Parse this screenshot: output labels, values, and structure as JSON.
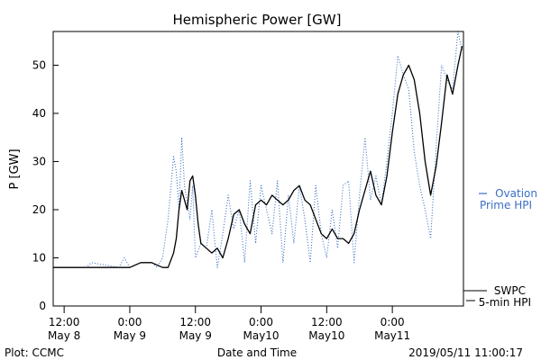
{
  "chart_data": {
    "type": "line",
    "title": "Hemispheric Power [GW]",
    "ylabel": "P [GW]",
    "xlabel": "Date and Time",
    "xlim": [
      "2019-05-08 10:00",
      "2019-05-11 13:00"
    ],
    "ylim": [
      0,
      57
    ],
    "grid": false,
    "yticks": [
      0,
      10,
      20,
      30,
      40,
      50
    ],
    "xticks": [
      {
        "time": "2019-05-08 12:00",
        "line1": "12:00",
        "line2": "May 8"
      },
      {
        "time": "2019-05-09 00:00",
        "line1": "0:00",
        "line2": "May 9"
      },
      {
        "time": "2019-05-09 12:00",
        "line1": "12:00",
        "line2": "May 9"
      },
      {
        "time": "2019-05-10 00:00",
        "line1": "0:00",
        "line2": "May10"
      },
      {
        "time": "2019-05-10 12:00",
        "line1": "12:00",
        "line2": "May10"
      },
      {
        "time": "2019-05-11 00:00",
        "line1": "0:00",
        "line2": "May11"
      }
    ],
    "series": [
      {
        "name": "SWPC 5-min HPI",
        "label_line1": "SWPC",
        "label_line2": "5-min HPI",
        "color": "#000000",
        "style": "solid",
        "x": [
          "2019-05-08 10:00",
          "2019-05-08 14:00",
          "2019-05-08 18:00",
          "2019-05-08 22:00",
          "2019-05-09 00:00",
          "2019-05-09 02:00",
          "2019-05-09 04:00",
          "2019-05-09 06:00",
          "2019-05-09 07:00",
          "2019-05-09 08:00",
          "2019-05-09 08:30",
          "2019-05-09 09:00",
          "2019-05-09 09:30",
          "2019-05-09 10:00",
          "2019-05-09 10:30",
          "2019-05-09 11:00",
          "2019-05-09 11:30",
          "2019-05-09 12:00",
          "2019-05-09 12:30",
          "2019-05-09 13:00",
          "2019-05-09 14:00",
          "2019-05-09 15:00",
          "2019-05-09 16:00",
          "2019-05-09 17:00",
          "2019-05-09 18:00",
          "2019-05-09 19:00",
          "2019-05-09 20:00",
          "2019-05-09 21:00",
          "2019-05-09 22:00",
          "2019-05-09 23:00",
          "2019-05-10 00:00",
          "2019-05-10 01:00",
          "2019-05-10 02:00",
          "2019-05-10 03:00",
          "2019-05-10 04:00",
          "2019-05-10 05:00",
          "2019-05-10 06:00",
          "2019-05-10 07:00",
          "2019-05-10 08:00",
          "2019-05-10 09:00",
          "2019-05-10 10:00",
          "2019-05-10 11:00",
          "2019-05-10 12:00",
          "2019-05-10 13:00",
          "2019-05-10 14:00",
          "2019-05-10 15:00",
          "2019-05-10 16:00",
          "2019-05-10 17:00",
          "2019-05-10 18:00",
          "2019-05-10 19:00",
          "2019-05-10 20:00",
          "2019-05-10 21:00",
          "2019-05-10 22:00",
          "2019-05-10 23:00",
          "2019-05-11 00:00",
          "2019-05-11 01:00",
          "2019-05-11 02:00",
          "2019-05-11 03:00",
          "2019-05-11 04:00",
          "2019-05-11 05:00",
          "2019-05-11 06:00",
          "2019-05-11 07:00",
          "2019-05-11 08:00",
          "2019-05-11 09:00",
          "2019-05-11 10:00",
          "2019-05-11 11:00",
          "2019-05-11 12:00",
          "2019-05-11 12:45"
        ],
        "y": [
          8,
          8,
          8,
          8,
          8,
          9,
          9,
          8,
          8,
          11,
          14,
          20,
          24,
          22,
          20,
          26,
          27,
          23,
          17,
          13,
          12,
          11,
          12,
          10,
          14,
          19,
          20,
          17,
          15,
          21,
          22,
          21,
          23,
          22,
          21,
          22,
          24,
          25,
          22,
          21,
          18,
          15,
          14,
          16,
          14,
          14,
          13,
          15,
          20,
          24,
          28,
          23,
          21,
          27,
          36,
          44,
          48,
          50,
          47,
          40,
          30,
          23,
          29,
          38,
          48,
          44,
          50,
          54
        ]
      },
      {
        "name": "Ovation Prime HPI",
        "label_line1": "Ovation",
        "label_line2": "Prime HPI",
        "color": "#3a6fc4",
        "style": "dotted",
        "x": [
          "2019-05-08 10:00",
          "2019-05-08 16:00",
          "2019-05-08 17:00",
          "2019-05-08 22:00",
          "2019-05-08 23:00",
          "2019-05-09 00:00",
          "2019-05-09 02:00",
          "2019-05-09 04:00",
          "2019-05-09 05:00",
          "2019-05-09 06:00",
          "2019-05-09 07:00",
          "2019-05-09 08:00",
          "2019-05-09 08:30",
          "2019-05-09 09:00",
          "2019-05-09 09:30",
          "2019-05-09 10:00",
          "2019-05-09 11:00",
          "2019-05-09 11:30",
          "2019-05-09 12:00",
          "2019-05-09 13:00",
          "2019-05-09 14:00",
          "2019-05-09 15:00",
          "2019-05-09 16:00",
          "2019-05-09 17:00",
          "2019-05-09 18:00",
          "2019-05-09 19:00",
          "2019-05-09 20:00",
          "2019-05-09 21:00",
          "2019-05-09 22:00",
          "2019-05-09 23:00",
          "2019-05-10 00:00",
          "2019-05-10 01:00",
          "2019-05-10 02:00",
          "2019-05-10 03:00",
          "2019-05-10 04:00",
          "2019-05-10 05:00",
          "2019-05-10 06:00",
          "2019-05-10 07:00",
          "2019-05-10 08:00",
          "2019-05-10 09:00",
          "2019-05-10 10:00",
          "2019-05-10 11:00",
          "2019-05-10 12:00",
          "2019-05-10 13:00",
          "2019-05-10 14:00",
          "2019-05-10 15:00",
          "2019-05-10 16:00",
          "2019-05-10 17:00",
          "2019-05-10 18:00",
          "2019-05-10 19:00",
          "2019-05-10 20:00",
          "2019-05-10 21:00",
          "2019-05-10 22:00",
          "2019-05-10 23:00",
          "2019-05-11 00:00",
          "2019-05-11 01:00",
          "2019-05-11 02:00",
          "2019-05-11 03:00",
          "2019-05-11 04:00",
          "2019-05-11 05:00",
          "2019-05-11 06:00",
          "2019-05-11 07:00",
          "2019-05-11 08:00",
          "2019-05-11 09:00",
          "2019-05-11 10:00",
          "2019-05-11 11:00",
          "2019-05-11 12:00",
          "2019-05-11 12:45"
        ],
        "y": [
          8,
          8,
          9,
          8,
          10,
          8,
          9,
          9,
          8,
          10,
          18,
          31,
          28,
          20,
          35,
          25,
          18,
          25,
          10,
          13,
          12,
          20,
          8,
          15,
          23,
          16,
          20,
          9,
          26,
          13,
          25,
          20,
          15,
          26,
          9,
          23,
          13,
          25,
          18,
          9,
          25,
          15,
          10,
          20,
          12,
          25,
          26,
          9,
          23,
          35,
          22,
          27,
          21,
          30,
          40,
          52,
          48,
          45,
          32,
          25,
          20,
          14,
          33,
          50,
          47,
          45,
          57,
          53
        ]
      }
    ]
  },
  "footer": {
    "plot_label": "Plot: CCMC",
    "timestamp": "2019/05/11 11:00:17"
  }
}
